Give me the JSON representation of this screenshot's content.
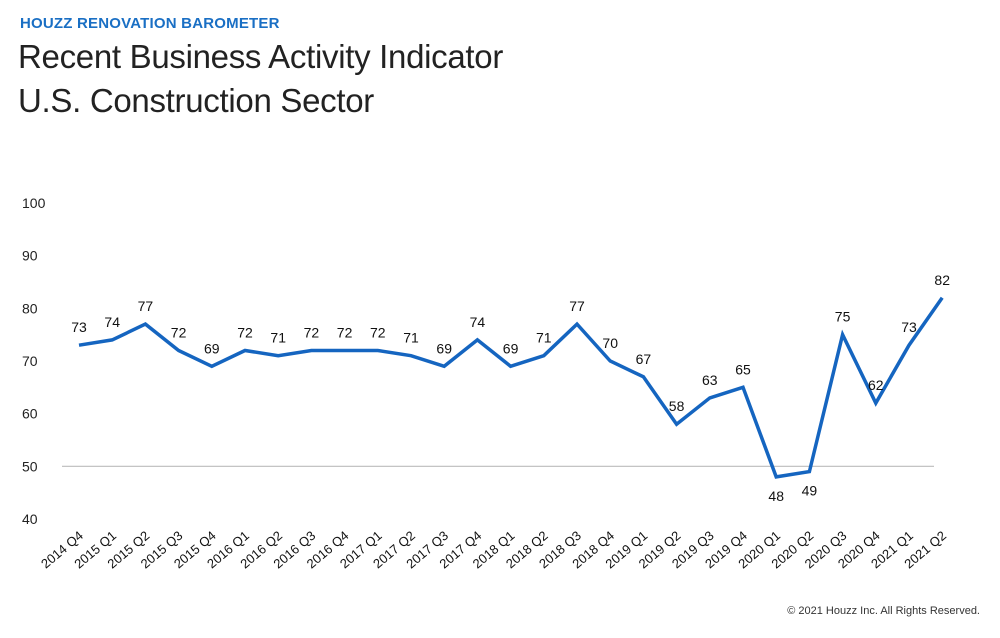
{
  "header": {
    "eyebrow": "HOUZZ RENOVATION BAROMETER",
    "title_line1": "Recent Business Activity Indicator",
    "title_line2": "U.S. Construction Sector"
  },
  "footer": {
    "copyright": "© 2021 Houzz Inc. All Rights Reserved."
  },
  "colors": {
    "accent": "#1a6fc4",
    "line": "#1565c0",
    "baseline": "#bbbbbb"
  },
  "chart_data": {
    "type": "line",
    "title": "Recent Business Activity Indicator U.S. Construction Sector",
    "xlabel": "",
    "ylabel": "",
    "ylim": [
      40,
      100
    ],
    "yticks": [
      40,
      50,
      60,
      70,
      80,
      90,
      100
    ],
    "reference_line": 50,
    "grid": false,
    "categories": [
      "2014 Q4",
      "2015 Q1",
      "2015 Q2",
      "2015 Q3",
      "2015 Q4",
      "2016 Q1",
      "2016 Q2",
      "2016 Q3",
      "2016 Q4",
      "2017 Q1",
      "2017 Q2",
      "2017 Q3",
      "2017 Q4",
      "2018 Q1",
      "2018 Q2",
      "2018 Q3",
      "2018 Q4",
      "2019 Q1",
      "2019 Q2",
      "2019 Q3",
      "2019 Q4",
      "2020 Q1",
      "2020 Q2",
      "2020 Q3",
      "2020 Q4",
      "2021 Q1",
      "2021 Q2"
    ],
    "series": [
      {
        "name": "Recent Business Activity Indicator",
        "values": [
          73,
          74,
          77,
          72,
          69,
          72,
          71,
          72,
          72,
          72,
          71,
          69,
          74,
          69,
          71,
          77,
          70,
          67,
          58,
          63,
          65,
          48,
          49,
          75,
          62,
          73,
          82
        ]
      }
    ],
    "labels_below": [
      21,
      22
    ]
  }
}
